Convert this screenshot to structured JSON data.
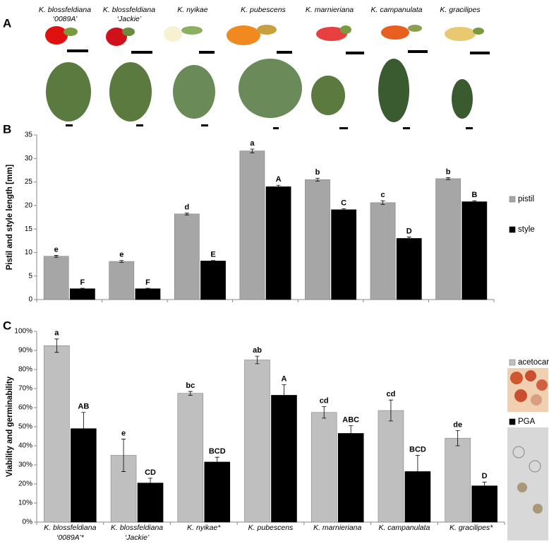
{
  "panel_a": {
    "label": "A",
    "species": [
      [
        "K. blossfeldiana",
        "‘0089A’"
      ],
      [
        "K. blossfeldiana",
        "‘Jackie’"
      ],
      [
        "K. nyikae"
      ],
      [
        "K. pubescens"
      ],
      [
        "K. marnieriana"
      ],
      [
        "K. campanulata"
      ],
      [
        "K. gracilipes"
      ]
    ]
  },
  "chart_data": [
    {
      "type": "bar",
      "panel": "B",
      "y_label": "Pistil and style length [mm]",
      "ylim": [
        0,
        35
      ],
      "yticks": [
        0,
        5,
        10,
        15,
        20,
        25,
        30,
        35
      ],
      "series": [
        {
          "name": "pistil",
          "color": "#a6a6a6",
          "values": [
            9.2,
            8.1,
            18.2,
            31.6,
            25.5,
            20.6,
            25.7
          ],
          "errors": [
            0.2,
            0.2,
            0.2,
            0.4,
            0.3,
            0.4,
            0.2
          ],
          "letters": [
            "e",
            "e",
            "d",
            "a",
            "b",
            "c",
            "b"
          ]
        },
        {
          "name": "style",
          "color": "#000000",
          "values": [
            2.3,
            2.3,
            8.2,
            24,
            19.1,
            13,
            20.8
          ],
          "errors": [
            0.1,
            0.1,
            0.1,
            0.3,
            0.2,
            0.3,
            0.2
          ],
          "letters": [
            "F",
            "F",
            "E",
            "A",
            "C",
            "D",
            "B"
          ]
        }
      ]
    },
    {
      "type": "bar",
      "panel": "C",
      "y_label": "Viability  and germinability",
      "categories": [
        [
          "K. blossfeldiana",
          "‘0089A’*"
        ],
        [
          "K. blossfeldiana",
          "‘Jackie’"
        ],
        [
          "K. nyikae*"
        ],
        [
          "K. pubescens"
        ],
        [
          "K. marnieriana"
        ],
        [
          "K. campanulata"
        ],
        [
          "K. gracilipes*"
        ]
      ],
      "ylim": [
        0,
        100
      ],
      "yticks": [
        {
          "value": 0,
          "label": "0%"
        },
        {
          "value": 10,
          "label": "10%"
        },
        {
          "value": 20,
          "label": "20%"
        },
        {
          "value": 30,
          "label": "30%"
        },
        {
          "value": 40,
          "label": "40%"
        },
        {
          "value": 50,
          "label": "50%"
        },
        {
          "value": 60,
          "label": "60%"
        },
        {
          "value": 70,
          "label": "70%"
        },
        {
          "value": 80,
          "label": "80%"
        },
        {
          "value": 90,
          "label": "90%"
        },
        {
          "value": 100,
          "label": "100%"
        }
      ],
      "series": [
        {
          "name": "acetocarmine",
          "color": "#bfbfbf",
          "values": [
            92.5,
            35,
            67.5,
            85,
            57.5,
            58.5,
            44
          ],
          "errors": [
            3.5,
            8.5,
            1,
            2,
            3,
            5.5,
            4
          ],
          "letters": [
            "a",
            "e",
            "bc",
            "ab",
            "cd",
            "cd",
            "de"
          ]
        },
        {
          "name": "PGA",
          "color": "#000000",
          "values": [
            49,
            20.5,
            31.5,
            66.5,
            46.5,
            26.5,
            19
          ],
          "errors": [
            8.5,
            2.5,
            2.5,
            5.5,
            4,
            8.5,
            2
          ],
          "letters": [
            "AB",
            "CD",
            "BCD",
            "A",
            "ABC",
            "BCD",
            "D"
          ]
        }
      ]
    }
  ]
}
